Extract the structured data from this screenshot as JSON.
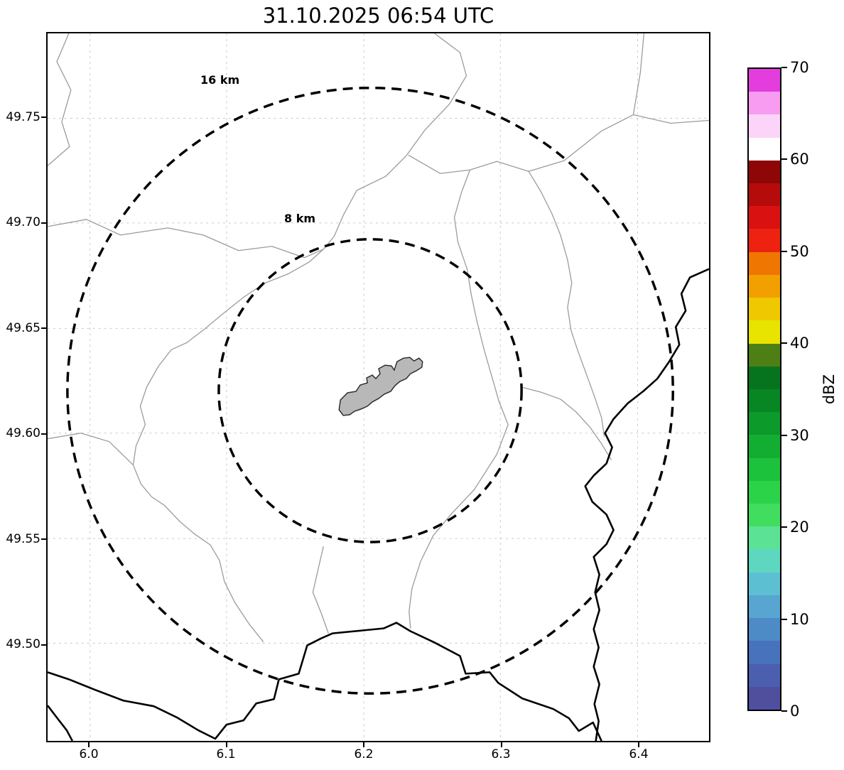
{
  "title": "31.10.2025 06:54 UTC",
  "axes": {
    "x_ticks": [
      "6.0",
      "6.1",
      "6.2",
      "6.3",
      "6.4"
    ],
    "y_ticks": [
      "49.75",
      "49.70",
      "49.65",
      "49.60",
      "49.55",
      "49.50"
    ]
  },
  "rings": {
    "outer_label": "16 km",
    "inner_label": "8 km"
  },
  "colorbar": {
    "label": "dBZ",
    "min": 0,
    "max": 70,
    "ticks": [
      {
        "value": 70,
        "label": "70"
      },
      {
        "value": 60,
        "label": "60"
      },
      {
        "value": 50,
        "label": "50"
      },
      {
        "value": 40,
        "label": "40"
      },
      {
        "value": 30,
        "label": "30"
      },
      {
        "value": 20,
        "label": "20"
      },
      {
        "value": 10,
        "label": "10"
      },
      {
        "value": 0,
        "label": "0"
      }
    ],
    "colors_bottom_to_top": [
      "#4f4f9e",
      "#4b5fae",
      "#4773bc",
      "#4d8bc7",
      "#57a5d0",
      "#5dc0d2",
      "#5ed7c0",
      "#5be295",
      "#41dd5f",
      "#2bd348",
      "#1cc23c",
      "#12ae32",
      "#0c9a2a",
      "#088623",
      "#06741e",
      "#4d7f15",
      "#e8e400",
      "#f0c800",
      "#f2a000",
      "#ef7600",
      "#ee2211",
      "#d91111",
      "#b50b0b",
      "#8e0606",
      "#ffffff",
      "#fcd4f9",
      "#f79cf0",
      "#e33ddd"
    ]
  },
  "chart_data": {
    "type": "map",
    "title": "31.10.2025 06:54 UTC",
    "x_axis_ticks": [
      6.0,
      6.1,
      6.2,
      6.3,
      6.4
    ],
    "y_axis_ticks": [
      49.5,
      49.55,
      49.6,
      49.65,
      49.7,
      49.75
    ],
    "x_range": [
      5.97,
      6.45
    ],
    "y_range": [
      49.45,
      49.79
    ],
    "grid": true,
    "range_rings_km": [
      8,
      16
    ],
    "ring_center_lonlat": [
      6.2,
      49.62
    ],
    "colorbar": {
      "label": "dBZ",
      "range": [
        0,
        70
      ],
      "tick_step": 10,
      "step_dbz": 2.5
    },
    "radar_echoes_visible": false
  }
}
